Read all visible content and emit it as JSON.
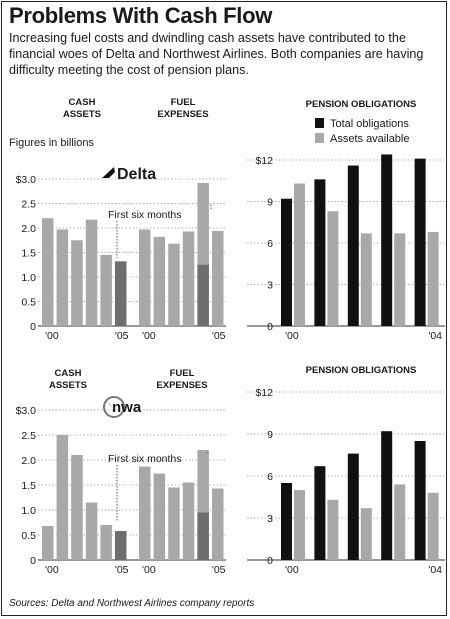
{
  "header": {
    "title": "Problems With Cash Flow",
    "subtitle": "Increasing fuel costs and dwindling cash assets have contributed to the financial woes of Delta and Northwest Airlines. Both companies are having difficulty meeting the cost of pension plans."
  },
  "footer": {
    "source": "Sources: Delta and Northwest Airlines company reports"
  },
  "note": "Figures in billions",
  "colors": {
    "cash": "#a8a8a8",
    "fuel": "#a8a8a8",
    "partial": "#6e6e6e",
    "total": "#111111",
    "assets": "#a8a8a8",
    "grid": "#999999",
    "axis": "#333333"
  },
  "chart_data": [
    {
      "type": "bar",
      "airline": "Delta",
      "logo_text": "Delta",
      "logo_icon": "delta-widget-icon",
      "panels": [
        {
          "label_line1": "CASH",
          "label_line2": "ASSETS",
          "x_labels": [
            "'00",
            "'05"
          ],
          "values": [
            2.2,
            1.97,
            1.75,
            2.17,
            1.45,
            1.32
          ],
          "partial_index": 5
        },
        {
          "label_line1": "FUEL",
          "label_line2": "EXPENSES",
          "x_labels": [
            "'00",
            "'05"
          ],
          "values": [
            1.97,
            1.82,
            1.68,
            1.93,
            2.92,
            1.94
          ],
          "overlay": {
            "index": 4,
            "value": 1.25
          }
        }
      ],
      "annotation": "First six months",
      "y_ticks": [
        "$3.0",
        "2.5",
        "2.0",
        "1.5",
        "1.0",
        "0.5",
        "0"
      ],
      "ylim": [
        0,
        3
      ]
    },
    {
      "type": "bar",
      "airline": "Delta",
      "title": "PENSION OBLIGATIONS",
      "legend": [
        "Total obligations",
        "Assets available"
      ],
      "series": [
        {
          "name": "Total obligations",
          "values": [
            9.2,
            10.6,
            11.6,
            12.4,
            12.1
          ]
        },
        {
          "name": "Assets available",
          "values": [
            10.3,
            8.3,
            6.7,
            6.7,
            6.8
          ]
        }
      ],
      "x_labels": [
        "'00",
        "'04"
      ],
      "y_ticks": [
        "$12",
        "9",
        "6",
        "3",
        "0"
      ],
      "ylim": [
        0,
        12
      ]
    },
    {
      "type": "bar",
      "airline": "Northwest Airlines",
      "logo_text": "nwa",
      "logo_icon": "nwa-compass-icon",
      "panels": [
        {
          "label_line1": "CASH",
          "label_line2": "ASSETS",
          "x_labels": [
            "'00",
            "'05"
          ],
          "values": [
            0.68,
            2.5,
            2.1,
            1.15,
            0.7,
            0.58
          ],
          "partial_index": 5
        },
        {
          "label_line1": "FUEL",
          "label_line2": "EXPENSES",
          "x_labels": [
            "'00",
            "'05"
          ],
          "values": [
            1.87,
            1.73,
            1.45,
            1.55,
            2.2,
            1.43
          ],
          "overlay": {
            "index": 4,
            "value": 0.95
          }
        }
      ],
      "annotation": "First six months",
      "y_ticks": [
        "$3.0",
        "2.5",
        "2.0",
        "1.5",
        "1.0",
        "0.5",
        "0"
      ],
      "ylim": [
        0,
        3
      ]
    },
    {
      "type": "bar",
      "airline": "Northwest Airlines",
      "title": "PENSION OBLIGATIONS",
      "series": [
        {
          "name": "Total obligations",
          "values": [
            5.5,
            6.7,
            7.6,
            9.2,
            8.5
          ]
        },
        {
          "name": "Assets available",
          "values": [
            5.0,
            4.3,
            3.7,
            5.4,
            4.8
          ]
        }
      ],
      "x_labels": [
        "'00",
        "'04"
      ],
      "y_ticks": [
        "$12",
        "9",
        "6",
        "3",
        "0"
      ],
      "ylim": [
        0,
        12
      ]
    }
  ]
}
